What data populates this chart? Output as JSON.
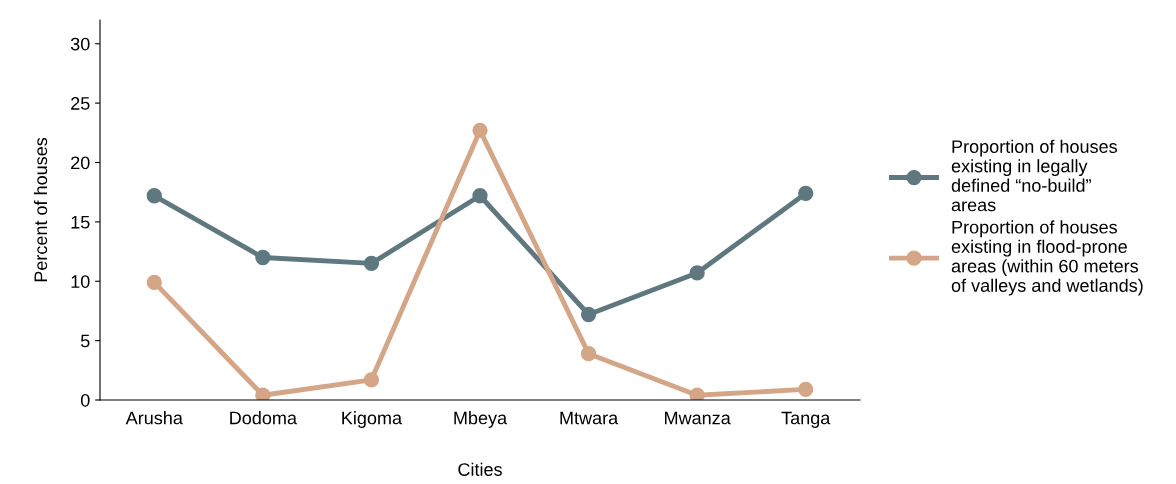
{
  "chart_data": {
    "type": "line",
    "xlabel": "Cities",
    "ylabel": "Percent of houses",
    "categories": [
      "Arusha",
      "Dodoma",
      "Kigoma",
      "Mbeya",
      "Mtwara",
      "Mwanza",
      "Tanga"
    ],
    "series": [
      {
        "name": "Proportion of houses\nexisting in legally\ndefined “no-build”\nareas",
        "color": "#5f7880",
        "values": [
          17.2,
          12.0,
          11.5,
          17.2,
          7.2,
          10.7,
          17.4
        ]
      },
      {
        "name": "Proportion of houses\nexisting in flood-prone\nareas (within 60 meters\nof valleys and wetlands)",
        "color": "#d4a586",
        "values": [
          9.9,
          0.4,
          1.7,
          22.7,
          3.9,
          0.4,
          0.9
        ]
      }
    ],
    "ylim": [
      0,
      32
    ],
    "yticks": [
      0,
      5,
      10,
      15,
      20,
      25,
      30
    ],
    "grid": false,
    "legend": "right",
    "marker": "circle",
    "line_style": "solid"
  }
}
